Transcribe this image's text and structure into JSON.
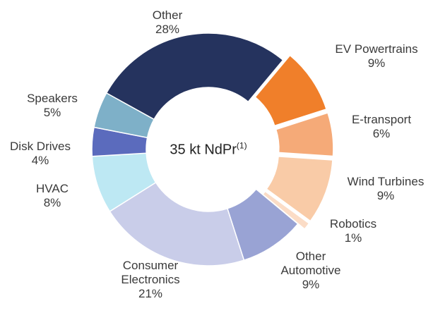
{
  "chart_data": {
    "type": "donut",
    "center_label": "35 kt NdPr",
    "center_note": "(1)",
    "categories": [
      "Other",
      "EV Powertrains",
      "E-transport",
      "Wind Turbines",
      "Robotics",
      "Other Automotive",
      "Consumer Electronics",
      "HVAC",
      "Disk Drives",
      "Speakers"
    ],
    "values": [
      28,
      9,
      6,
      9,
      1,
      9,
      21,
      8,
      4,
      5
    ],
    "value_labels": [
      "28%",
      "9%",
      "6%",
      "9%",
      "1%",
      "9%",
      "21%",
      "8%",
      "4%",
      "5%"
    ],
    "colors": [
      "#25335e",
      "#f07f2a",
      "#f5aa78",
      "#f9cba7",
      "#fbdcc6",
      "#99a3d4",
      "#c9cde9",
      "#bde8f3",
      "#5b6bbd",
      "#7eb0c8"
    ],
    "explode": [
      false,
      true,
      true,
      true,
      true,
      false,
      false,
      false,
      false,
      false
    ]
  }
}
